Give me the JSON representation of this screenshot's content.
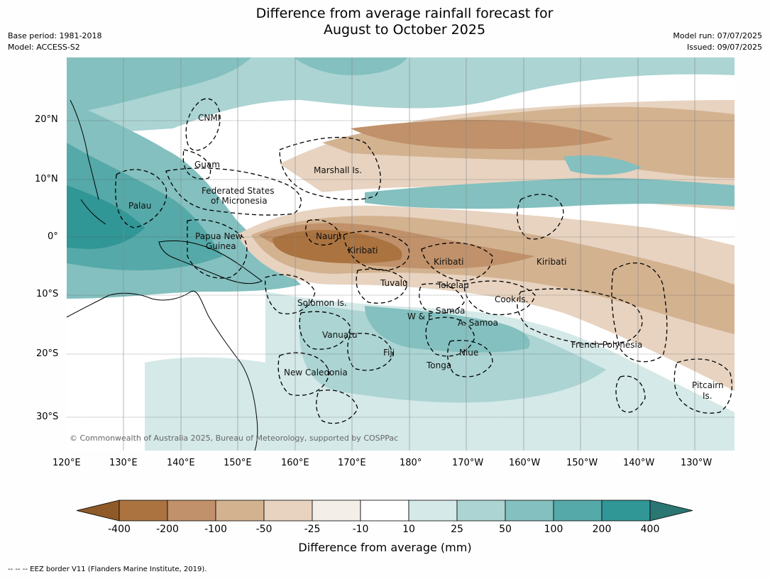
{
  "header": {
    "title_line1": "Difference from average rainfall forecast for",
    "title_line2": "August to October 2025",
    "base_period": "Base period: 1981-2018",
    "model": "Model: ACCESS-S2",
    "model_run": "Model run: 07/07/2025",
    "issued": "Issued: 09/07/2025"
  },
  "axes": {
    "lat_labels": [
      "20°N",
      "10°N",
      "0°",
      "10°S",
      "20°S",
      "30°S"
    ],
    "lon_labels": [
      "120°E",
      "130°E",
      "140°E",
      "150°E",
      "160°E",
      "170°E",
      "180°",
      "170°W",
      "160°W",
      "150°W",
      "140°W",
      "130°W"
    ]
  },
  "regions": [
    {
      "name": "CNMI"
    },
    {
      "name": "Guam"
    },
    {
      "name": "Marshall Is."
    },
    {
      "name": "Federated States"
    },
    {
      "name": "of Micronesia"
    },
    {
      "name": "Palau"
    },
    {
      "name": "Papua New"
    },
    {
      "name": "Guinea"
    },
    {
      "name": "Nauru"
    },
    {
      "name": "Kiribati"
    },
    {
      "name": "Kiribati"
    },
    {
      "name": "Kiribati"
    },
    {
      "name": "Tuvalu"
    },
    {
      "name": "Tokelau"
    },
    {
      "name": "Cook Is."
    },
    {
      "name": "Solomon Is."
    },
    {
      "name": "Samoa"
    },
    {
      "name": "W & F"
    },
    {
      "name": "A. Samoa"
    },
    {
      "name": "Vanuatu"
    },
    {
      "name": "Fiji"
    },
    {
      "name": "Niue"
    },
    {
      "name": "Tonga"
    },
    {
      "name": "French Polynesia"
    },
    {
      "name": "New Caledonia"
    },
    {
      "name": "Pitcairn"
    },
    {
      "name": "Is."
    }
  ],
  "copyright": "© Commonwealth of Australia 2025, Bureau of Meteorology, supported by COSPPac",
  "colorbar": {
    "label": "Difference from average (mm)",
    "ticks": [
      "-400",
      "-200",
      "-100",
      "-50",
      "-25",
      "-10",
      "10",
      "25",
      "50",
      "100",
      "200",
      "400"
    ],
    "colors": [
      "#8f5a28",
      "#aa7340",
      "#c0916a",
      "#d3b290",
      "#e7d3c0",
      "#f3eee7",
      "#ffffff",
      "#d4e9e8",
      "#abd4d3",
      "#83c0bf",
      "#55a9a8",
      "#319696",
      "#2a7673"
    ]
  },
  "footnote": "--  --  -- EEZ border V11 (Flanders Marine Institute, 2019)."
}
